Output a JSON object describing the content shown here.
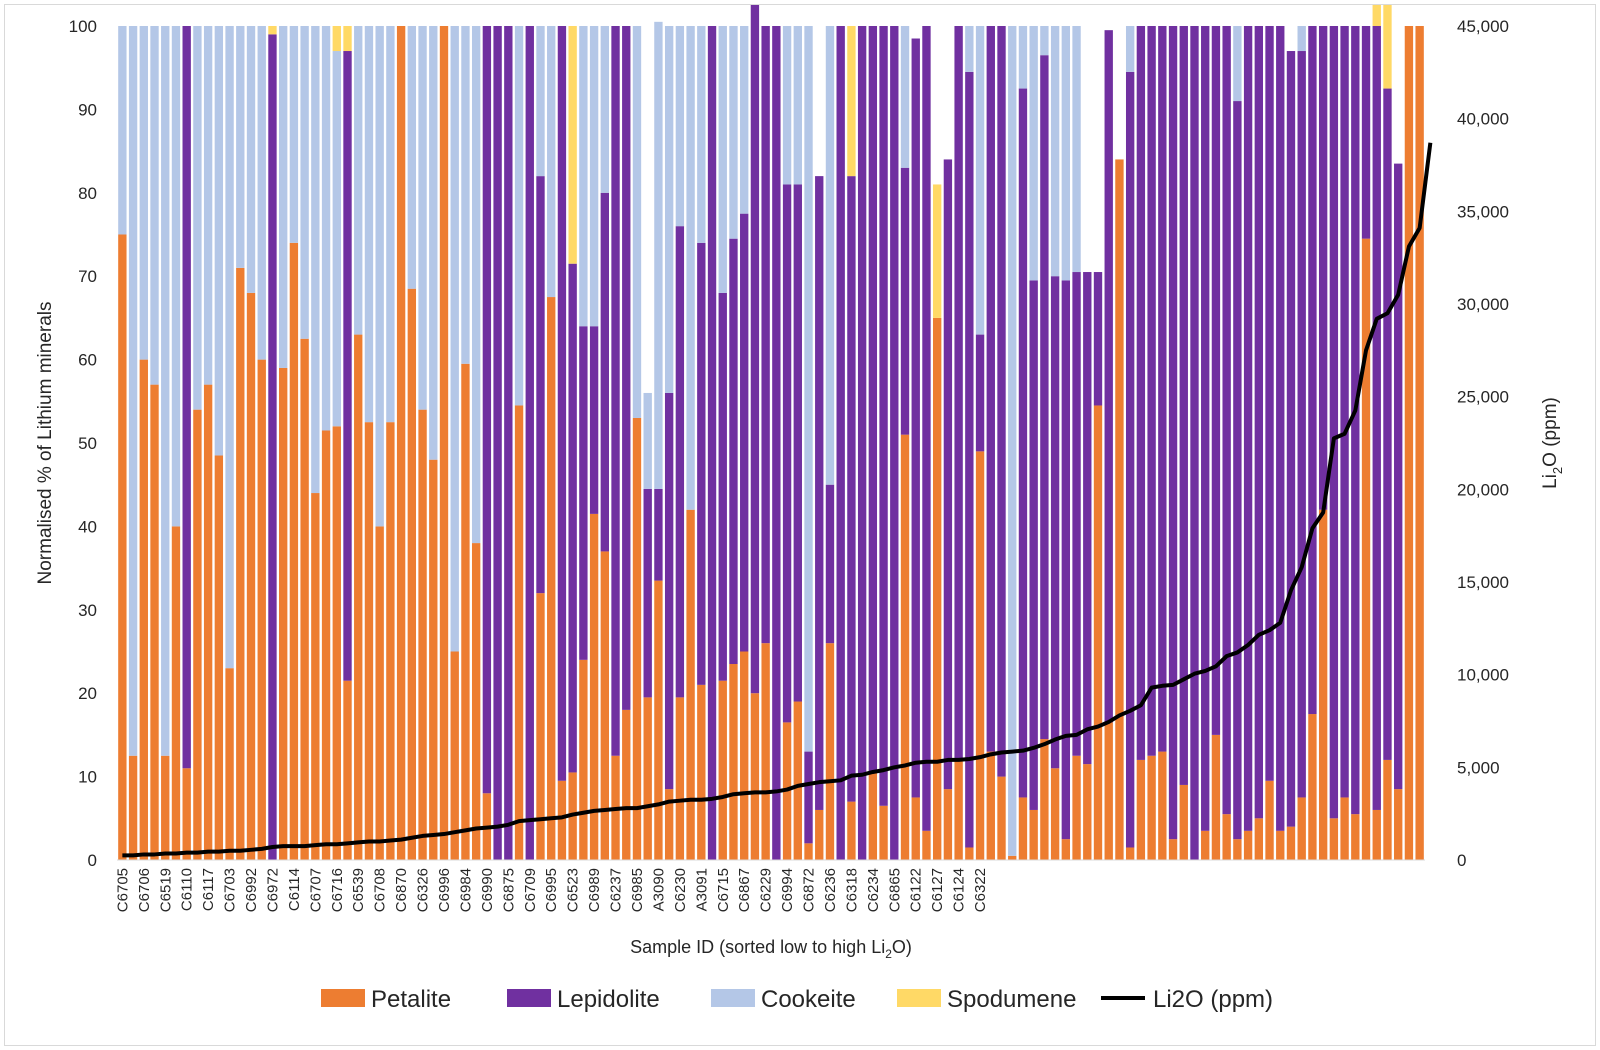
{
  "chart_data": {
    "type": "bar",
    "stacked": true,
    "percent_stacked": true,
    "xlabel": "Sample ID (sorted low to high Li",
    "xlabel_sub": "2",
    "xlabel_tail": "O)",
    "ylabel": "Normalised % of Lithium minerals",
    "y2label_pre": "Li",
    "y2label_sub": "2",
    "y2label_tail": "O (ppm)",
    "ylim": [
      0,
      100
    ],
    "y2lim": [
      0,
      45000
    ],
    "yticks": [
      "0",
      "10",
      "20",
      "30",
      "40",
      "50",
      "60",
      "70",
      "80",
      "90",
      "100"
    ],
    "y2ticks": [
      "0",
      "5,000",
      "10,000",
      "15,000",
      "20,000",
      "25,000",
      "30,000",
      "35,000",
      "40,000",
      "45,000"
    ],
    "grid": false,
    "legend_position": "bottom",
    "categories_shown": [
      "C6705",
      "C6706",
      "C6519",
      "C6110",
      "C6117",
      "C6703",
      "C6992",
      "C6972",
      "C6114",
      "C6707",
      "C6716",
      "C6539",
      "C6708",
      "C6870",
      "C6326",
      "C6996",
      "C6984",
      "C6990",
      "C6875",
      "C6709",
      "C6995",
      "C6523",
      "C6989",
      "C6237",
      "C6985",
      "A3090",
      "C6230",
      "A3091",
      "C6715",
      "C6867",
      "C6229",
      "C6994",
      "C6872",
      "C6236",
      "C6318",
      "C6234",
      "C6865",
      "C6122",
      "C6127",
      "C6124",
      "C6322"
    ],
    "label_every": 2,
    "series_colors": {
      "Petalite": "#ed7d31",
      "Lepidolite": "#7030a0",
      "Cookeite": "#b4c7e7",
      "Spodumene": "#ffd966",
      "Li2O (ppm)": "#000000"
    },
    "series": [
      {
        "name": "Petalite",
        "values": [
          75,
          12.5,
          60,
          57,
          12.5,
          40,
          11,
          54,
          57,
          48.5,
          23,
          71,
          68,
          60,
          0,
          59,
          74,
          62.5,
          44,
          51.5,
          52,
          21.5,
          63,
          52.5,
          40,
          52.5,
          100,
          68.5,
          54,
          48,
          100,
          25,
          59.5,
          38,
          8,
          0,
          0,
          54.5,
          0,
          32,
          67.5,
          9.5,
          10.5,
          24,
          41.5,
          37,
          12.5,
          18,
          53,
          19.5,
          33.5,
          8.5,
          19.5,
          42,
          21,
          0,
          21.5,
          23.5,
          25,
          20,
          26,
          0,
          16.5,
          19,
          2,
          6,
          26,
          0,
          7,
          0,
          10.5,
          6.5,
          0,
          51,
          7.5,
          3.5,
          65,
          8.5,
          12,
          1.5,
          49,
          13,
          10,
          0.5,
          7.5,
          6,
          14.5,
          11,
          2.5,
          12.5,
          11.5,
          54.5,
          16.5,
          84,
          1.5,
          12,
          12.5,
          13,
          2.5,
          9,
          0,
          3.5,
          15,
          5.5,
          2.5,
          3.5,
          5,
          9.5,
          3.5,
          4,
          7.5,
          17.5,
          42,
          5,
          7.5,
          5.5,
          74.5,
          6,
          12,
          8.5,
          100,
          100
        ]
      },
      {
        "name": "Lepidolite",
        "values": [
          0,
          0,
          0,
          0,
          0,
          0,
          89,
          0,
          0,
          0,
          0,
          0,
          0,
          0,
          99,
          0,
          0,
          0,
          0,
          0,
          0,
          75.5,
          0,
          0,
          0,
          0,
          0,
          0,
          0,
          0,
          0,
          0,
          0,
          0,
          92,
          100,
          100,
          0,
          100,
          50,
          0,
          90.5,
          61,
          40,
          22.5,
          43,
          87.5,
          82,
          0,
          25,
          11,
          47.5,
          56.5,
          0,
          53,
          100,
          46.5,
          51,
          52.5,
          100,
          74,
          100,
          64.5,
          62,
          11,
          76,
          19,
          100,
          75,
          100,
          89.5,
          93.5,
          100,
          32,
          91,
          96.5,
          0,
          75.5,
          88,
          93,
          14,
          87,
          90,
          0,
          85,
          63.5,
          82,
          59,
          67,
          58,
          59,
          16,
          83,
          0,
          93,
          88,
          87.5,
          87,
          97.5,
          91,
          100,
          96.5,
          85,
          94.5,
          88.5,
          96.5,
          95,
          90.5,
          96.5,
          93,
          89.5,
          82.5,
          58,
          95,
          92.5,
          94.5,
          25.5,
          94,
          80.5,
          75,
          0,
          0
        ]
      },
      {
        "name": "Cookeite",
        "values": [
          25,
          87.5,
          40,
          43,
          87.5,
          60,
          0,
          46,
          43,
          51.5,
          77,
          29,
          32,
          40,
          0,
          41,
          26,
          37.5,
          56,
          48.5,
          45,
          0,
          37,
          47.5,
          60,
          47.5,
          0,
          31.5,
          46,
          52,
          0,
          75,
          40.5,
          62,
          0,
          0,
          0,
          45.5,
          0,
          18,
          32.5,
          0,
          0,
          36,
          36,
          20,
          0,
          0,
          47,
          11.5,
          56,
          44,
          24,
          58,
          26,
          0,
          32,
          25.5,
          22.5,
          0,
          0,
          0,
          19,
          19,
          87,
          0,
          55,
          0,
          0,
          0,
          0,
          0,
          0,
          17,
          0,
          0,
          0,
          0,
          0,
          5.5,
          37,
          0,
          0,
          99.5,
          7.5,
          30.5,
          3.5,
          30,
          30.5,
          29.5,
          0,
          0,
          0,
          0,
          5.5,
          0,
          0,
          0,
          0,
          0,
          0,
          0,
          0,
          0,
          9,
          0,
          0,
          0,
          0,
          0,
          3,
          0,
          0,
          0,
          0,
          0,
          0,
          0,
          0,
          0,
          0
        ]
      },
      {
        "name": "Spodumene",
        "values": [
          0,
          0,
          0,
          0,
          0,
          0,
          0,
          0,
          0,
          0,
          0,
          0,
          0,
          0,
          1,
          0,
          0,
          0,
          0,
          0,
          3,
          3,
          0,
          0,
          0,
          0,
          0,
          0,
          0,
          0,
          0,
          0,
          0,
          0,
          0,
          0,
          0,
          0,
          0,
          0,
          0,
          0,
          28.5,
          0,
          0,
          0,
          0,
          0,
          0,
          0,
          0,
          0,
          0,
          0,
          0,
          0,
          0,
          0,
          0,
          0,
          0,
          0,
          0,
          0,
          0,
          0,
          0,
          0,
          18,
          0,
          0,
          0,
          0,
          0,
          0,
          0,
          16,
          0,
          0,
          0,
          0,
          0,
          0,
          0,
          0,
          0,
          0,
          0,
          0,
          0,
          0,
          0,
          0,
          0,
          0,
          0,
          0,
          0,
          0,
          0,
          0,
          0,
          0,
          0,
          0,
          0,
          0,
          0,
          0,
          0,
          0,
          0,
          0,
          0,
          0,
          0,
          0,
          7.5,
          16.5,
          0,
          0
        ]
      },
      {
        "name": "Li2O (ppm)",
        "axis": "secondary",
        "type": "line",
        "values": [
          250,
          250,
          300,
          300,
          350,
          350,
          400,
          400,
          450,
          450,
          500,
          500,
          550,
          600,
          700,
          750,
          750,
          750,
          800,
          850,
          850,
          900,
          950,
          1000,
          1000,
          1050,
          1100,
          1200,
          1300,
          1350,
          1400,
          1500,
          1600,
          1700,
          1750,
          1800,
          1900,
          2100,
          2150,
          2200,
          2250,
          2300,
          2450,
          2550,
          2650,
          2700,
          2750,
          2800,
          2800,
          2900,
          3000,
          3150,
          3200,
          3250,
          3250,
          3300,
          3400,
          3550,
          3600,
          3650,
          3650,
          3700,
          3800,
          4000,
          4100,
          4200,
          4250,
          4300,
          4550,
          4600,
          4750,
          4850,
          5000,
          5100,
          5250,
          5300,
          5300,
          5400,
          5400,
          5450,
          5550,
          5700,
          5800,
          5850,
          5900,
          6050,
          6250,
          6500,
          6700,
          6750,
          7050,
          7200,
          7450,
          7800,
          8050,
          8350,
          9300,
          9400,
          9450,
          9750,
          10050,
          10200,
          10450,
          11000,
          11200,
          11600,
          12150,
          12400,
          12800,
          14550,
          15800,
          17900,
          18750,
          22750,
          23000,
          24250,
          27500,
          29200,
          29500,
          30500,
          33100,
          34100,
          38700
        ]
      }
    ]
  }
}
